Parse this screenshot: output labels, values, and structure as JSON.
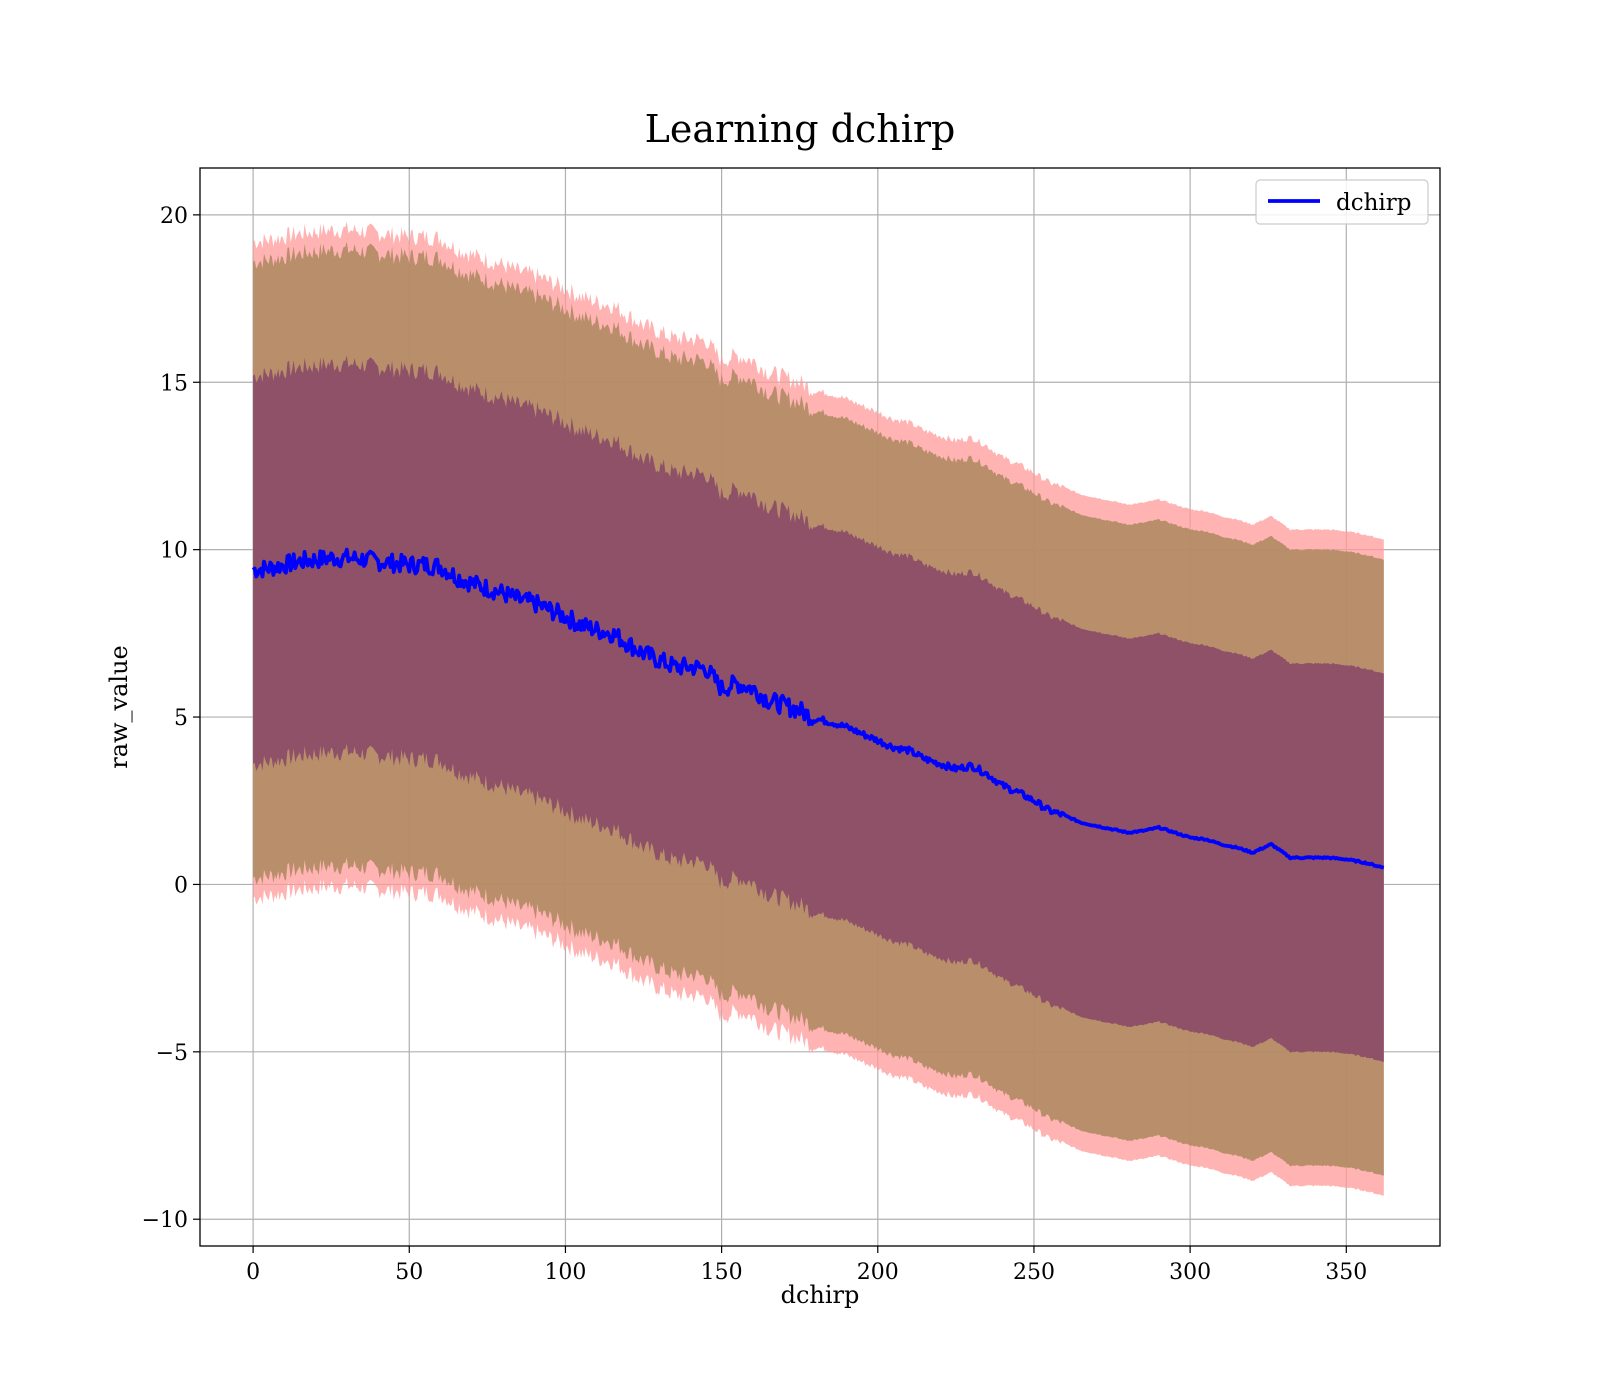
{
  "chart_data": {
    "type": "line",
    "title": "Learning dchirp",
    "xlabel": "dchirp",
    "ylabel": "raw_value",
    "xlim": [
      -17,
      380
    ],
    "ylim": [
      -10.8,
      21.4
    ],
    "grid": true,
    "legend": {
      "placement": "top-right",
      "entries": [
        "dchirp"
      ]
    },
    "xticks": [
      0,
      50,
      100,
      150,
      200,
      250,
      300,
      350
    ],
    "xtick_labels": [
      "0",
      "50",
      "100",
      "150",
      "200",
      "250",
      "300",
      "350"
    ],
    "yticks": [
      -10,
      -5,
      0,
      5,
      10,
      15,
      20
    ],
    "ytick_labels": [
      "−10",
      "−5",
      "0",
      "5",
      "10",
      "15",
      "20"
    ],
    "colors": {
      "mean_line": "#0000ff",
      "band_outer": "#ff9999",
      "band_middle": "#b08a63",
      "band_inner": "#8a4a68",
      "grid": "#b0b0b0"
    },
    "series": [
      {
        "name": "dchirp",
        "x": [
          0,
          5,
          10,
          15,
          20,
          25,
          30,
          35,
          40,
          45,
          50,
          55,
          60,
          65,
          70,
          75,
          80,
          85,
          90,
          95,
          100,
          105,
          110,
          115,
          120,
          125,
          130,
          135,
          140,
          145,
          150,
          155,
          160,
          165,
          170,
          175,
          180,
          185,
          190,
          195,
          200,
          205,
          210,
          215,
          220,
          225,
          230,
          235,
          240,
          245,
          250,
          255,
          260,
          265,
          270,
          275,
          280,
          285,
          290,
          295,
          300,
          305,
          310,
          315,
          320,
          326,
          332,
          338,
          344,
          350,
          356,
          362
        ],
        "mean": [
          9.4,
          9.45,
          9.55,
          9.65,
          9.7,
          9.75,
          9.75,
          9.72,
          9.65,
          9.6,
          9.55,
          9.55,
          9.5,
          9.2,
          9.0,
          8.85,
          8.7,
          8.5,
          8.4,
          8.2,
          8.0,
          7.75,
          7.6,
          7.5,
          7.2,
          6.9,
          6.7,
          6.5,
          6.5,
          6.45,
          5.85,
          6.0,
          5.85,
          5.5,
          5.35,
          5.2,
          4.95,
          4.85,
          4.7,
          4.5,
          4.3,
          4.1,
          4.0,
          3.75,
          3.6,
          3.45,
          3.55,
          3.3,
          2.95,
          2.75,
          2.5,
          2.2,
          2.05,
          1.85,
          1.75,
          1.65,
          1.55,
          1.6,
          1.7,
          1.55,
          1.4,
          1.35,
          1.2,
          1.1,
          0.95,
          1.2,
          0.8,
          0.8,
          0.8,
          0.75,
          0.65,
          0.5
        ],
        "std_inner": 5.8,
        "std_middle": 9.2,
        "std_outer": 9.8
      }
    ]
  }
}
